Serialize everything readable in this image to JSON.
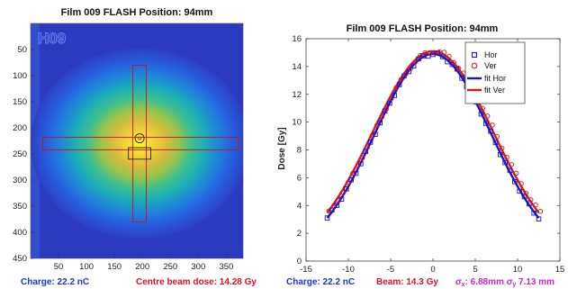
{
  "colors": {
    "hor": "#1515c8",
    "ver": "#e01616",
    "footer_blue": "#1a35d6",
    "footer_red": "#e0102a",
    "footer_magenta": "#d21fd2",
    "roi": "#d10f0f"
  },
  "chart_data": [
    {
      "type": "heatmap",
      "title": "Film 009  FLASH  Position: 94mm",
      "film_marking": "H09",
      "colormap": "parula",
      "xlim": [
        0,
        380
      ],
      "ylim": [
        0,
        450
      ],
      "x_ticks": [
        "50",
        "100",
        "150",
        "200",
        "250",
        "300",
        "350"
      ],
      "y_ticks": [
        "50",
        "100",
        "150",
        "200",
        "250",
        "300",
        "350",
        "400",
        "450"
      ],
      "beam_center": [
        195,
        230
      ],
      "beam_sigma": [
        75,
        70
      ],
      "footer": [
        {
          "text": "Charge: 22.2 nC",
          "color": "blue"
        },
        {
          "text": "Centre beam dose: 14.28 Gy",
          "color": "red"
        }
      ]
    },
    {
      "type": "scatter",
      "title": "Film 009  FLASH  Position: 94mm",
      "xlabel": "",
      "ylabel": "Dose [Gy]",
      "xlim": [
        -15,
        15
      ],
      "ylim": [
        0,
        16
      ],
      "x_ticks": [
        "-15",
        "-10",
        "-5",
        "0",
        "5",
        "10",
        "15"
      ],
      "y_ticks": [
        "0",
        "2",
        "4",
        "6",
        "8",
        "10",
        "12",
        "14",
        "16"
      ],
      "legend": [
        "Hor",
        "Ver",
        "fit Hor",
        "fit Ver"
      ],
      "legend_position": "top-right",
      "fit_hor": {
        "amplitude": 14.6,
        "center": 0.0,
        "sigma": 6.88,
        "offset": 0.3
      },
      "fit_ver": {
        "amplitude": 14.8,
        "center": 0.0,
        "sigma": 7.13,
        "offset": 0.3
      },
      "x_range": [
        -12.5,
        12.5
      ],
      "footer": [
        {
          "text": "Charge: 22.2 nC",
          "color": "blue"
        },
        {
          "text": "Beam: 14.3 Gy",
          "color": "red"
        },
        {
          "text": "σx: 6.88mm σy 7.13 mm",
          "color": "magenta"
        }
      ]
    }
  ],
  "footer": {
    "left_charge": "Charge: 22.2 nC",
    "left_dose": "Centre beam dose: 14.28 Gy",
    "right_charge": "Charge: 22.2 nC",
    "right_beam": "Beam: 14.3 Gy",
    "sigma_x_sym": "σ",
    "sigma_x_sub": "x",
    "sigma_x_val": ": 6.88mm ",
    "sigma_y_sym": "σ",
    "sigma_y_sub": "y",
    "sigma_y_val": " 7.13 mm"
  }
}
